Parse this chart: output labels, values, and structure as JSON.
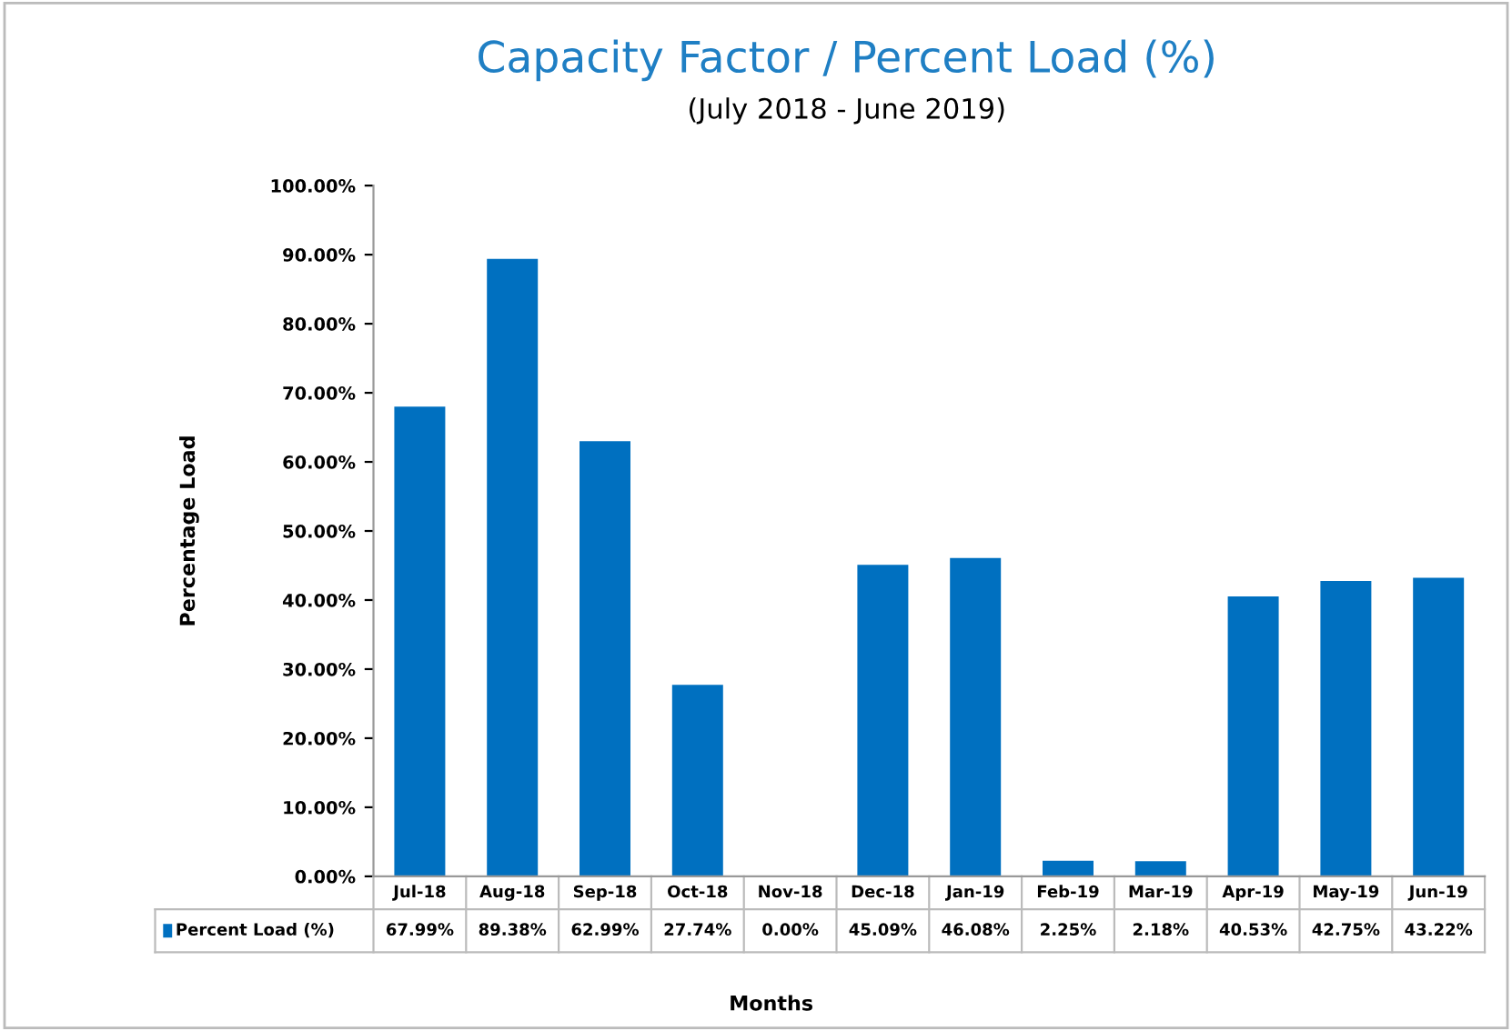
{
  "chart_data": {
    "type": "bar",
    "title": "Capacity Factor / Percent Load (%)",
    "subtitle": "(July 2018 - June 2019)",
    "xlabel": "Months",
    "ylabel": "Percentage Load",
    "categories": [
      "Jul-18",
      "Aug-18",
      "Sep-18",
      "Oct-18",
      "Nov-18",
      "Dec-18",
      "Jan-19",
      "Feb-19",
      "Mar-19",
      "Apr-19",
      "May-19",
      "Jun-19"
    ],
    "series": [
      {
        "name": "Percent Load (%)",
        "color": "#0070c0",
        "values": [
          67.99,
          89.38,
          62.99,
          27.74,
          0.0,
          45.09,
          46.08,
          2.25,
          2.18,
          40.53,
          42.75,
          43.22
        ],
        "value_labels": [
          "67.99%",
          "89.38%",
          "62.99%",
          "27.74%",
          "0.00%",
          "45.09%",
          "46.08%",
          "2.25%",
          "2.18%",
          "40.53%",
          "42.75%",
          "43.22%"
        ]
      }
    ],
    "ylim": [
      0,
      100
    ],
    "yticks": [
      {
        "value": 0,
        "label": "0.00%"
      },
      {
        "value": 10,
        "label": "10.00%"
      },
      {
        "value": 20,
        "label": "20.00%"
      },
      {
        "value": 30,
        "label": "30.00%"
      },
      {
        "value": 40,
        "label": "40.00%"
      },
      {
        "value": 50,
        "label": "50.00%"
      },
      {
        "value": 60,
        "label": "60.00%"
      },
      {
        "value": 70,
        "label": "70.00%"
      },
      {
        "value": 80,
        "label": "80.00%"
      },
      {
        "value": 90,
        "label": "90.00%"
      },
      {
        "value": 100,
        "label": "100.00%"
      }
    ],
    "grid": false
  }
}
